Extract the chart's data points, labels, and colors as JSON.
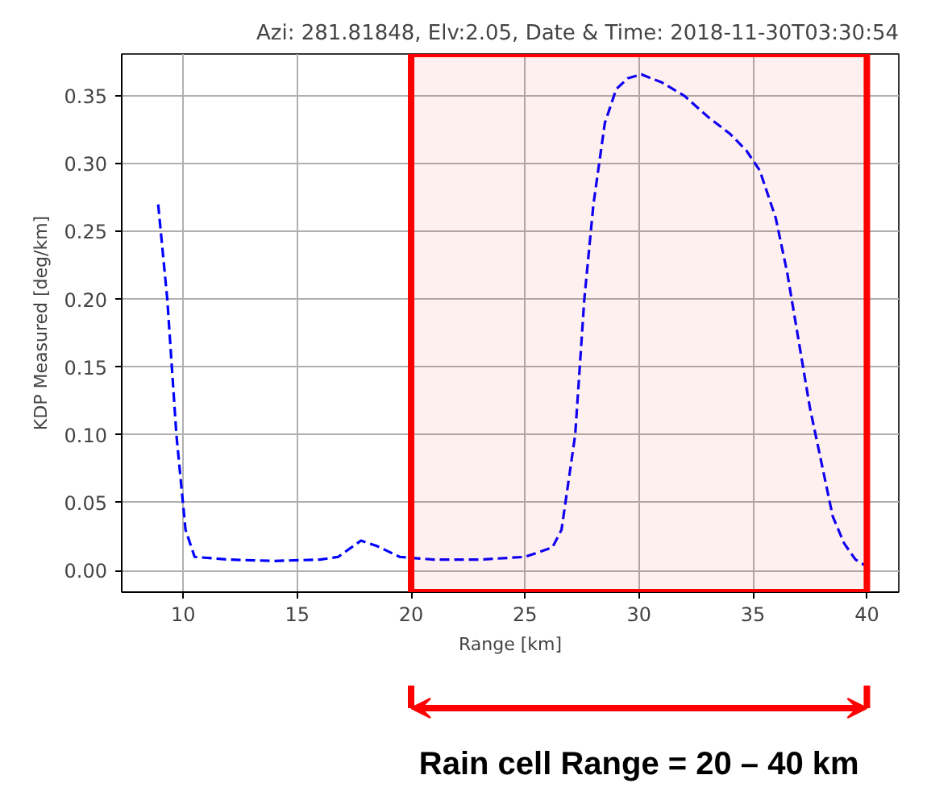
{
  "chart_data": {
    "type": "line",
    "title": "Azi: 281.81848, Elv:2.05, Date & Time: 2018-11-30T03:30:54",
    "xlabel": "Range [km]",
    "ylabel": "KDP Measured [deg/km]",
    "x": [
      8.9,
      9.3,
      9.7,
      10.1,
      10.5,
      12,
      14,
      16,
      16.8,
      17.8,
      18.5,
      19.5,
      21,
      23,
      25,
      26.2,
      26.6,
      27.2,
      27.6,
      28,
      28.5,
      29,
      29.5,
      30.1,
      31,
      32,
      33,
      34,
      34.7,
      35.3,
      36,
      36.5,
      37,
      37.5,
      38,
      38.5,
      39,
      39.5,
      40
    ],
    "series": [
      {
        "color": "#0000ff",
        "values": [
          0.27,
          0.2,
          0.1,
          0.03,
          0.01,
          0.008,
          0.007,
          0.008,
          0.01,
          0.022,
          0.018,
          0.01,
          0.008,
          0.008,
          0.01,
          0.017,
          0.03,
          0.1,
          0.2,
          0.27,
          0.33,
          0.355,
          0.363,
          0.366,
          0.36,
          0.35,
          0.335,
          0.322,
          0.31,
          0.295,
          0.26,
          0.22,
          0.17,
          0.12,
          0.08,
          0.04,
          0.02,
          0.008,
          0.003
        ]
      }
    ],
    "xlim": [
      7.3,
      41.4
    ],
    "ylim": [
      -0.016,
      0.381
    ],
    "xticks": [
      10,
      15,
      20,
      25,
      30,
      35,
      40
    ],
    "yticks": [
      {
        "value": 0,
        "label": "0.00"
      },
      0.05,
      {
        "value": 0.1,
        "label": "0.10"
      },
      0.15,
      {
        "value": 0.2,
        "label": "0.20"
      },
      0.25,
      {
        "value": 0.3,
        "label": "0.30"
      },
      0.35
    ],
    "grid": true,
    "line_style": "dashed",
    "marker": "none",
    "bands": [
      {
        "axis": "x",
        "from": 20,
        "to": 40,
        "label": "Rain cell Range = 20 – 40 km",
        "color": "#ff0000"
      }
    ]
  }
}
